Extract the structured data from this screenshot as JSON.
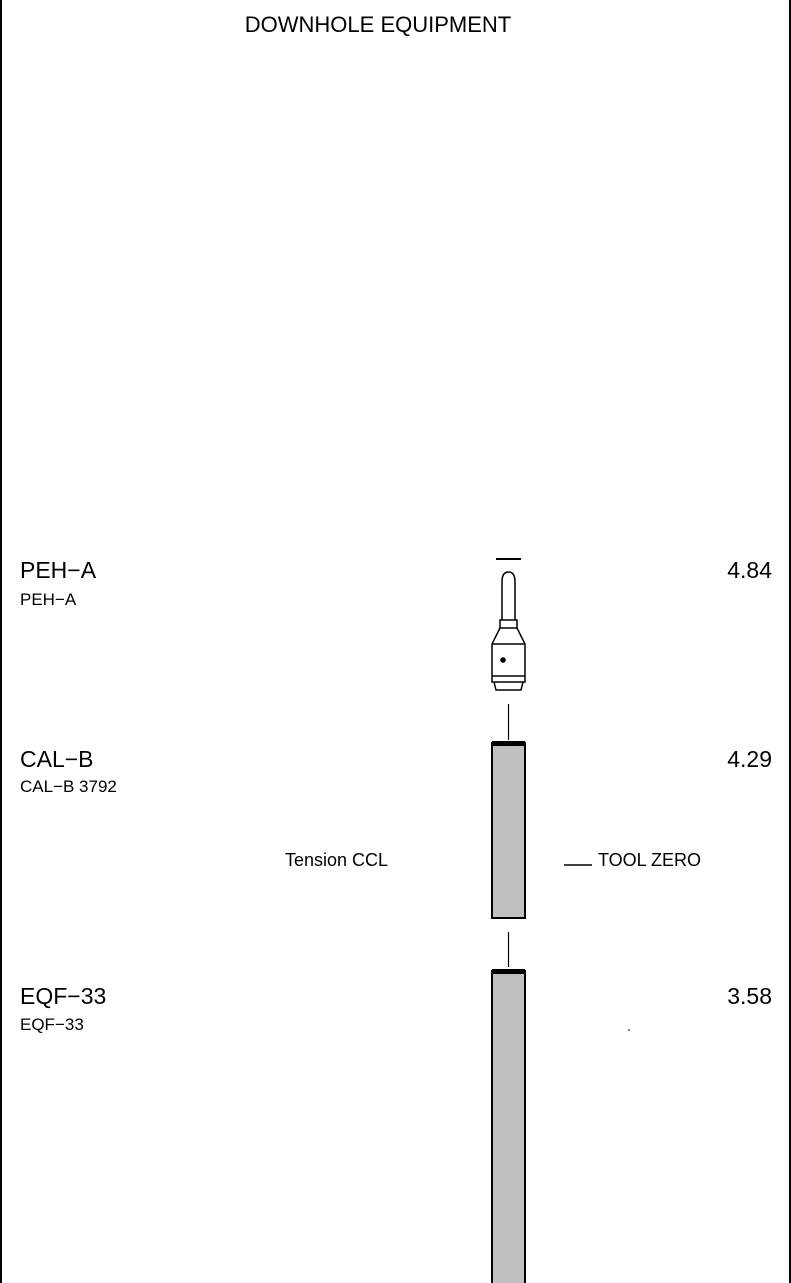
{
  "header": {
    "title": "DOWNHOLE  EQUIPMENT"
  },
  "tools": [
    {
      "name": "PEH−A",
      "subname": "PEH−A",
      "length": "4.84"
    },
    {
      "name": "CAL−B",
      "subname": "CAL−B 3792",
      "length": "4.29"
    },
    {
      "name": "EQF−33",
      "subname": "EQF−33",
      "length": "3.58"
    }
  ],
  "annotations": {
    "left": "Tension CCL",
    "right": "TOOL ZERO"
  }
}
